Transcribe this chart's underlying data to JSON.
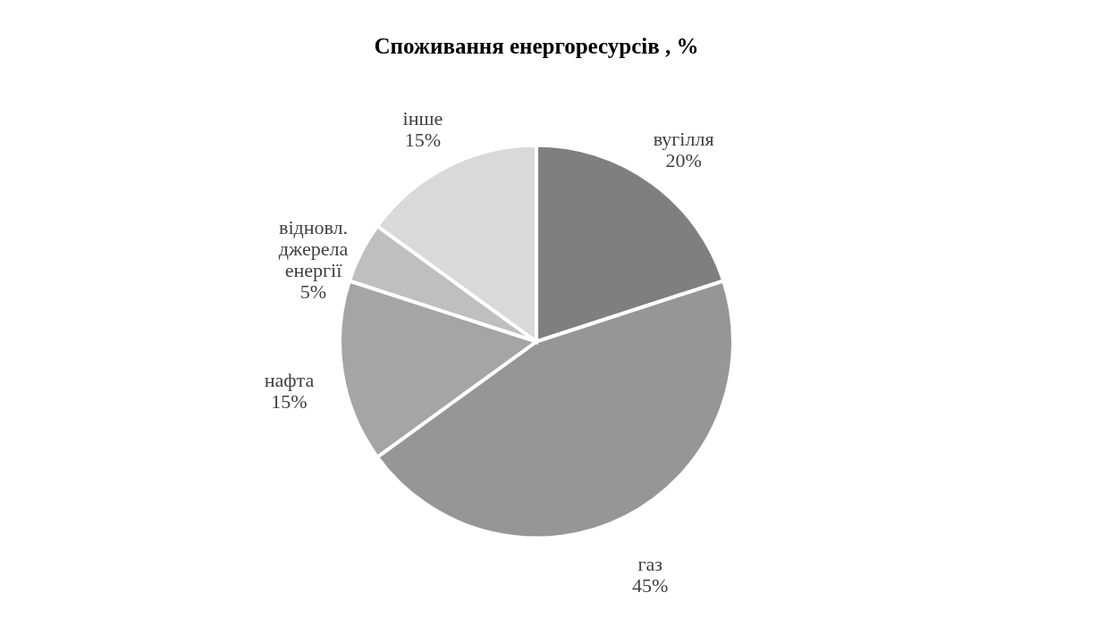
{
  "chart_data": {
    "type": "pie",
    "title": "Споживання енергоресурсів , %",
    "categories": [
      "вугілля",
      "газ",
      "нафта",
      "відновл. джерела енергії",
      "інше"
    ],
    "values": [
      20,
      45,
      15,
      5,
      15
    ],
    "value_labels": [
      "20%",
      "45%",
      "15%",
      "5%",
      "15%"
    ],
    "colors": [
      "#7f7f7f",
      "#969696",
      "#a5a5a5",
      "#bfbfbf",
      "#d9d9d9"
    ],
    "legend": false
  }
}
